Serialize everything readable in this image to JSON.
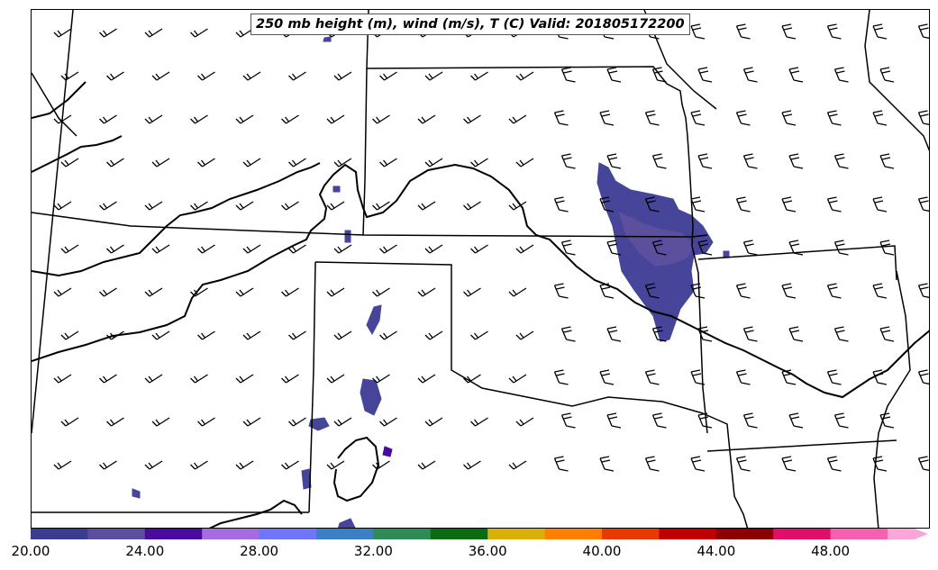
{
  "map": {
    "title": "250 mb height (m), wind (m/s), T (C) Valid: 201805172200",
    "line_color": "#000000",
    "shading_color_main": "#46459a",
    "shading_color_core": "#5c4f9e"
  },
  "colorbar": {
    "tick_labels": [
      "20.00",
      "24.00",
      "28.00",
      "32.00",
      "36.00",
      "40.00",
      "44.00",
      "48.00"
    ],
    "colors": [
      "#3b3b8f",
      "#5c4f9e",
      "#4a0a9e",
      "#a66bdf",
      "#6f76f7",
      "#3b7fc4",
      "#2e8b57",
      "#0a6b12",
      "#d9b00a",
      "#ff8000",
      "#e63a00",
      "#c00000",
      "#8b0000",
      "#e0106a",
      "#f560b0",
      "#f9a6d8"
    ]
  }
}
